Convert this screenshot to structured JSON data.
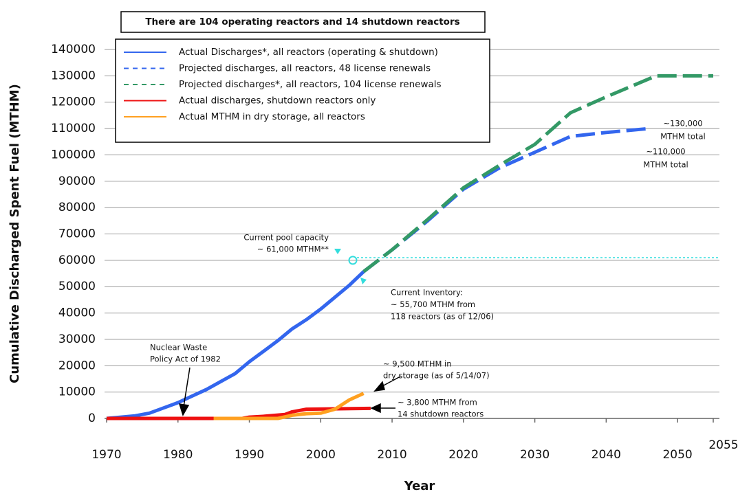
{
  "chart_data": {
    "type": "line",
    "title": "There are 104 operating reactors and 14 shutdown reactors",
    "x_label": "Year",
    "y_label": "Cumulative Discharged Spent Fuel (MTHM)",
    "xlim": [
      1970,
      2055
    ],
    "xticks": [
      1970,
      1980,
      1990,
      2000,
      2010,
      2020,
      2030,
      2040,
      2050,
      2055
    ],
    "ylim": [
      0,
      140000
    ],
    "yticks": [
      0,
      10000,
      20000,
      30000,
      40000,
      50000,
      60000,
      70000,
      80000,
      90000,
      100000,
      110000,
      120000,
      130000,
      140000
    ],
    "grid": true,
    "series": [
      {
        "name": "Actual Discharges*, all reactors (operating & shutdown)",
        "color": "#3366ee",
        "dashed": false,
        "x": [
          1970,
          1972,
          1974,
          1976,
          1978,
          1980,
          1982,
          1984,
          1986,
          1988,
          1990,
          1992,
          1994,
          1996,
          1998,
          2000,
          2002,
          2004,
          2006
        ],
        "values": [
          0,
          500,
          1000,
          2000,
          4000,
          6000,
          8500,
          11000,
          14000,
          17000,
          21500,
          25500,
          29500,
          34000,
          37500,
          41500,
          46000,
          50500,
          55700
        ]
      },
      {
        "name": "Projected discharges, all reactors, 48 license renewals",
        "color": "#3366ee",
        "dashed": true,
        "x": [
          2006,
          2010,
          2015,
          2020,
          2025,
          2030,
          2035,
          2040,
          2046
        ],
        "values": [
          55700,
          64000,
          75000,
          87000,
          95000,
          101000,
          107000,
          108500,
          110000
        ]
      },
      {
        "name": "Projected discharges*, all reactors, 104 license renewals",
        "color": "#339966",
        "dashed": true,
        "x": [
          2006,
          2010,
          2015,
          2020,
          2025,
          2030,
          2035,
          2040,
          2047,
          2055
        ],
        "values": [
          55700,
          64000,
          75500,
          87500,
          96000,
          104000,
          116000,
          122000,
          130000,
          130000
        ]
      },
      {
        "name": "Actual discharges, shutdown reactors only",
        "color": "#ee1111",
        "dashed": false,
        "x": [
          1970,
          1989,
          1990,
          1992,
          1995,
          1996,
          1998,
          2007
        ],
        "values": [
          0,
          0,
          500,
          800,
          1500,
          2500,
          3500,
          3800
        ]
      },
      {
        "name": "Actual MTHM in dry storage, all reactors",
        "color": "#ffa020",
        "dashed": false,
        "x": [
          1985,
          1994,
          1996,
          1998,
          2000,
          2002,
          2004,
          2006
        ],
        "values": [
          0,
          0,
          1200,
          1800,
          2000,
          3500,
          7000,
          9500
        ]
      }
    ],
    "pool_capacity": {
      "x": 2004.5,
      "y": 60000,
      "line_y": 61000,
      "color": "#33dddd"
    },
    "annotations": {
      "pool": [
        "Current pool capacity",
        "~ 61,000 MTHM**"
      ],
      "inventory": [
        "Current Inventory:",
        "~ 55,700 MTHM from",
        "118 reactors (as of 12/06)"
      ],
      "nwpa": [
        "Nuclear Waste",
        "Policy Act of 1982"
      ],
      "dry": [
        "~ 9,500 MTHM in",
        "dry storage (as of 5/14/07)"
      ],
      "shutdown": [
        "~ 3,800 MTHM from",
        "14 shutdown reactors"
      ],
      "high": [
        "~130,000",
        "MTHM total"
      ],
      "low": [
        "~110,000",
        "MTHM total"
      ]
    }
  }
}
